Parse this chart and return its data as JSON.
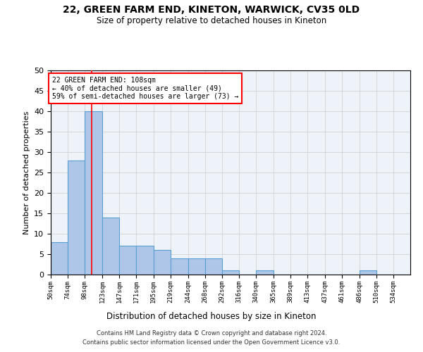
{
  "title": "22, GREEN FARM END, KINETON, WARWICK, CV35 0LD",
  "subtitle": "Size of property relative to detached houses in Kineton",
  "xlabel": "Distribution of detached houses by size in Kineton",
  "ylabel": "Number of detached properties",
  "bar_edges": [
    50,
    74,
    98,
    123,
    147,
    171,
    195,
    219,
    244,
    268,
    292,
    316,
    340,
    365,
    389,
    413,
    437,
    461,
    486,
    510,
    534,
    558
  ],
  "bar_heights": [
    8,
    28,
    40,
    14,
    7,
    7,
    6,
    4,
    4,
    4,
    1,
    0,
    1,
    0,
    0,
    0,
    0,
    0,
    1,
    0,
    0
  ],
  "bar_color": "#aec6e8",
  "bar_edgecolor": "#5a9fd4",
  "grid_color": "#cccccc",
  "background_color": "#eef2f9",
  "red_line_x": 108,
  "annotation_text": "22 GREEN FARM END: 108sqm\n← 40% of detached houses are smaller (49)\n59% of semi-detached houses are larger (73) →",
  "annotation_box_color": "white",
  "annotation_box_edgecolor": "red",
  "ylim": [
    0,
    50
  ],
  "tick_labels": [
    "50sqm",
    "74sqm",
    "98sqm",
    "123sqm",
    "147sqm",
    "171sqm",
    "195sqm",
    "219sqm",
    "244sqm",
    "268sqm",
    "292sqm",
    "316sqm",
    "340sqm",
    "365sqm",
    "389sqm",
    "413sqm",
    "437sqm",
    "461sqm",
    "486sqm",
    "510sqm",
    "534sqm"
  ],
  "footer_line1": "Contains HM Land Registry data © Crown copyright and database right 2024.",
  "footer_line2": "Contains public sector information licensed under the Open Government Licence v3.0."
}
